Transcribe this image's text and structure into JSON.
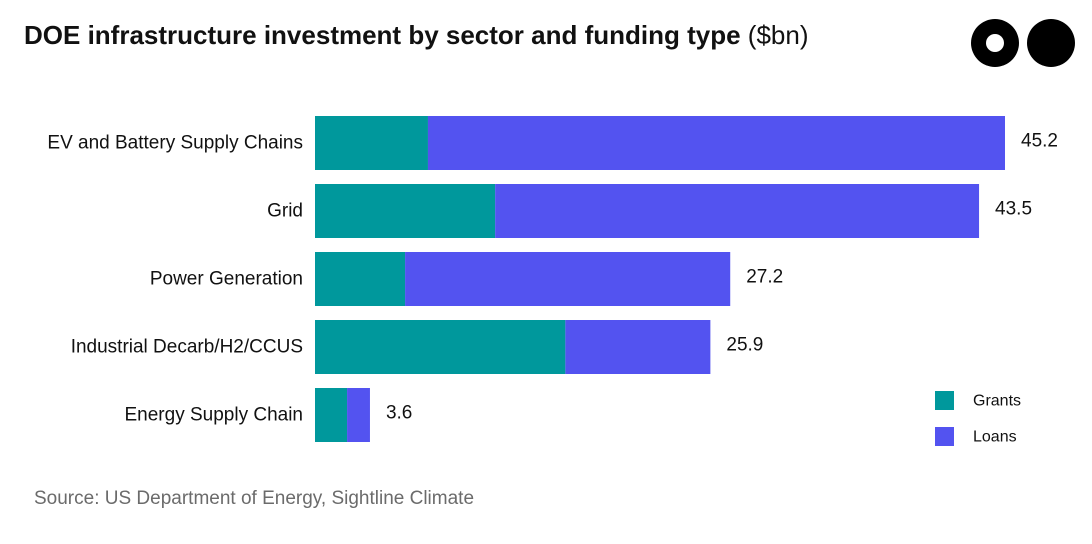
{
  "title": "DOE infrastructure investment by sector and funding type",
  "title_unit": "($bn)",
  "source": "Source: US Department of Energy, Sightline Climate",
  "colors": {
    "grants": "#00989c",
    "loans": "#5353f0",
    "text": "#111111",
    "source_text": "#6b6b6b"
  },
  "chart_data": {
    "type": "bar",
    "orientation": "horizontal",
    "stacked": true,
    "categories": [
      "EV and Battery Supply Chains",
      "Grid",
      "Power Generation",
      "Industrial Decarb/H2/CCUS",
      "Energy Supply Chain"
    ],
    "series": [
      {
        "name": "Grants",
        "values": [
          7.4,
          11.8,
          5.9,
          16.4,
          2.1
        ]
      },
      {
        "name": "Loans",
        "values": [
          37.8,
          31.7,
          21.3,
          9.5,
          1.5
        ]
      }
    ],
    "totals": [
      "45.2",
      "43.5",
      "27.2",
      "25.9",
      "3.6"
    ],
    "xlim": [
      0,
      45.2
    ],
    "grid": false,
    "legend": "bottom-right"
  }
}
